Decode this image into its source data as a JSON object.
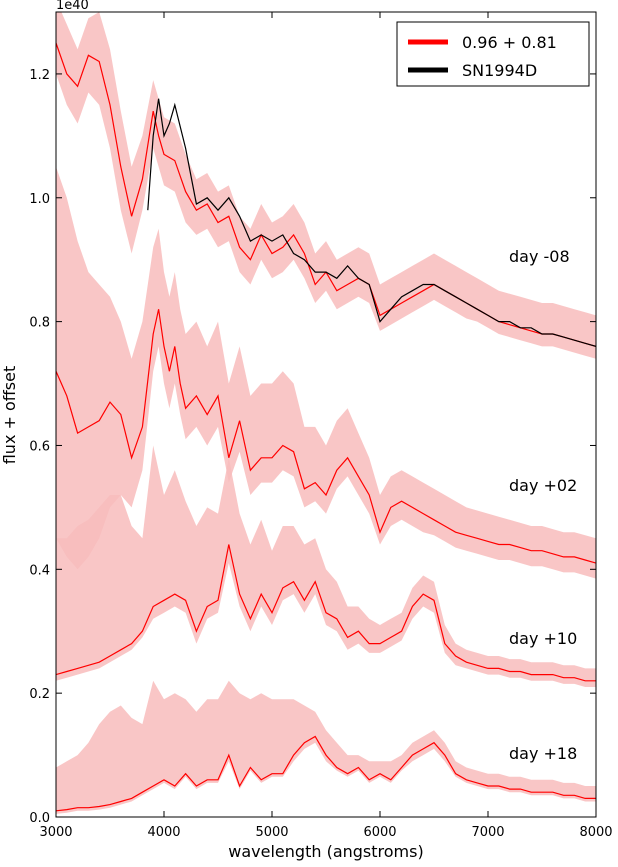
{
  "chart_data": {
    "type": "line",
    "title": "",
    "xlabel": "wavelength (angstroms)",
    "ylabel": "flux + offset",
    "y_exponent_label": "1e40",
    "xlim": [
      3000,
      8000
    ],
    "ylim": [
      0.0,
      1.3
    ],
    "xticks": [
      3000,
      4000,
      5000,
      6000,
      7000,
      8000
    ],
    "xtick_labels": [
      "3000",
      "4000",
      "5000",
      "6000",
      "7000",
      "8000"
    ],
    "yticks": [
      0.0,
      0.2,
      0.4,
      0.6,
      0.8,
      1.0,
      1.2
    ],
    "ytick_labels": [
      "0.0",
      "0.2",
      "0.4",
      "0.6",
      "0.8",
      "1.0",
      "1.2"
    ],
    "grid": false,
    "legend_position": "top-right",
    "legend": [
      {
        "label": "0.96 + 0.81",
        "color": "#ff0000"
      },
      {
        "label": "SN1994D",
        "color": "#000000"
      }
    ],
    "colors": {
      "model": "#ff0000",
      "band": "#f8bcbc",
      "observed": "#000000"
    },
    "epochs": [
      {
        "label": "day -08",
        "model": {
          "x": [
            3000,
            3100,
            3200,
            3300,
            3400,
            3500,
            3600,
            3700,
            3800,
            3900,
            3950,
            4000,
            4100,
            4200,
            4300,
            4400,
            4500,
            4600,
            4700,
            4800,
            4900,
            5000,
            5100,
            5200,
            5300,
            5400,
            5500,
            5600,
            5700,
            5800,
            5900,
            6000,
            6100,
            6200,
            6300,
            6400,
            6500,
            6600,
            6700,
            6800,
            6900,
            7000,
            7100,
            7200,
            7300,
            7400,
            7500,
            7600,
            7700,
            7800,
            7900,
            8000
          ],
          "y": [
            1.25,
            1.2,
            1.18,
            1.23,
            1.22,
            1.15,
            1.05,
            0.97,
            1.03,
            1.14,
            1.1,
            1.07,
            1.06,
            1.01,
            0.98,
            0.99,
            0.96,
            0.97,
            0.92,
            0.9,
            0.94,
            0.91,
            0.92,
            0.94,
            0.91,
            0.86,
            0.88,
            0.85,
            0.86,
            0.87,
            0.86,
            0.81,
            0.82,
            0.83,
            0.84,
            0.85,
            0.86,
            0.85,
            0.84,
            0.83,
            0.82,
            0.81,
            0.8,
            0.795,
            0.79,
            0.785,
            0.78,
            0.78,
            0.775,
            0.77,
            0.765,
            0.76
          ]
        },
        "band_lower": [
          1.2,
          1.15,
          1.12,
          1.17,
          1.15,
          1.08,
          0.98,
          0.91,
          0.98,
          1.08,
          1.05,
          1.02,
          1.01,
          0.96,
          0.94,
          0.95,
          0.92,
          0.93,
          0.88,
          0.86,
          0.9,
          0.87,
          0.88,
          0.9,
          0.87,
          0.83,
          0.85,
          0.82,
          0.83,
          0.84,
          0.83,
          0.785,
          0.795,
          0.805,
          0.815,
          0.825,
          0.835,
          0.825,
          0.815,
          0.805,
          0.8,
          0.79,
          0.78,
          0.775,
          0.77,
          0.765,
          0.76,
          0.76,
          0.755,
          0.75,
          0.745,
          0.74
        ],
        "band_upper": [
          1.32,
          1.28,
          1.24,
          1.29,
          1.3,
          1.24,
          1.14,
          1.05,
          1.1,
          1.19,
          1.16,
          1.13,
          1.12,
          1.07,
          1.03,
          1.04,
          1.01,
          1.02,
          0.97,
          0.95,
          0.99,
          0.96,
          0.97,
          0.99,
          0.96,
          0.91,
          0.93,
          0.9,
          0.91,
          0.92,
          0.91,
          0.86,
          0.87,
          0.88,
          0.89,
          0.9,
          0.91,
          0.9,
          0.89,
          0.88,
          0.87,
          0.86,
          0.85,
          0.845,
          0.84,
          0.835,
          0.83,
          0.83,
          0.825,
          0.82,
          0.815,
          0.81
        ],
        "observed": {
          "x": [
            3850,
            3900,
            3950,
            4000,
            4050,
            4100,
            4200,
            4300,
            4400,
            4500,
            4600,
            4700,
            4800,
            4900,
            5000,
            5100,
            5200,
            5300,
            5400,
            5500,
            5600,
            5700,
            5800,
            5900,
            6000,
            6100,
            6200,
            6300,
            6400,
            6500,
            6600,
            6700,
            6800,
            6900,
            7000,
            7100,
            7200,
            7300,
            7400,
            7500,
            7600,
            7700,
            7800,
            7900,
            8000
          ],
          "y": [
            0.98,
            1.1,
            1.16,
            1.1,
            1.12,
            1.15,
            1.08,
            0.99,
            1.0,
            0.98,
            1.0,
            0.97,
            0.93,
            0.94,
            0.93,
            0.94,
            0.91,
            0.9,
            0.88,
            0.88,
            0.87,
            0.89,
            0.87,
            0.86,
            0.8,
            0.82,
            0.84,
            0.85,
            0.86,
            0.86,
            0.85,
            0.84,
            0.83,
            0.82,
            0.81,
            0.8,
            0.8,
            0.79,
            0.79,
            0.78,
            0.78,
            0.775,
            0.77,
            0.765,
            0.76
          ]
        }
      },
      {
        "label": "day +02",
        "model": {
          "x": [
            3000,
            3100,
            3200,
            3300,
            3400,
            3500,
            3600,
            3700,
            3800,
            3900,
            3950,
            4000,
            4050,
            4100,
            4150,
            4200,
            4300,
            4400,
            4500,
            4600,
            4700,
            4800,
            4900,
            5000,
            5100,
            5200,
            5300,
            5400,
            5500,
            5600,
            5700,
            5800,
            5900,
            6000,
            6100,
            6200,
            6300,
            6400,
            6500,
            6600,
            6700,
            6800,
            6900,
            7000,
            7100,
            7200,
            7300,
            7400,
            7500,
            7600,
            7700,
            7800,
            7900,
            8000
          ],
          "y": [
            0.72,
            0.68,
            0.62,
            0.63,
            0.64,
            0.67,
            0.65,
            0.58,
            0.63,
            0.78,
            0.82,
            0.76,
            0.72,
            0.76,
            0.7,
            0.66,
            0.68,
            0.65,
            0.68,
            0.58,
            0.64,
            0.56,
            0.58,
            0.58,
            0.6,
            0.59,
            0.53,
            0.54,
            0.52,
            0.56,
            0.58,
            0.55,
            0.52,
            0.46,
            0.5,
            0.51,
            0.5,
            0.49,
            0.48,
            0.47,
            0.46,
            0.455,
            0.45,
            0.445,
            0.44,
            0.44,
            0.435,
            0.43,
            0.43,
            0.425,
            0.42,
            0.42,
            0.415,
            0.41
          ]
        },
        "band_lower": [
          0.45,
          0.42,
          0.4,
          0.42,
          0.45,
          0.5,
          0.52,
          0.5,
          0.56,
          0.72,
          0.76,
          0.7,
          0.66,
          0.7,
          0.65,
          0.61,
          0.63,
          0.6,
          0.63,
          0.54,
          0.59,
          0.52,
          0.54,
          0.54,
          0.56,
          0.55,
          0.5,
          0.51,
          0.49,
          0.53,
          0.55,
          0.52,
          0.49,
          0.44,
          0.47,
          0.48,
          0.47,
          0.46,
          0.455,
          0.445,
          0.435,
          0.43,
          0.425,
          0.42,
          0.415,
          0.415,
          0.41,
          0.405,
          0.405,
          0.4,
          0.395,
          0.395,
          0.39,
          0.385
        ],
        "band_upper": [
          1.05,
          1.0,
          0.93,
          0.88,
          0.86,
          0.84,
          0.8,
          0.74,
          0.8,
          0.92,
          0.95,
          0.88,
          0.84,
          0.88,
          0.82,
          0.78,
          0.8,
          0.76,
          0.8,
          0.7,
          0.76,
          0.68,
          0.7,
          0.7,
          0.72,
          0.7,
          0.63,
          0.63,
          0.6,
          0.64,
          0.66,
          0.62,
          0.58,
          0.52,
          0.55,
          0.56,
          0.55,
          0.54,
          0.53,
          0.52,
          0.51,
          0.5,
          0.495,
          0.49,
          0.485,
          0.48,
          0.475,
          0.47,
          0.47,
          0.465,
          0.46,
          0.46,
          0.455,
          0.45
        ]
      },
      {
        "label": "day +10",
        "model": {
          "x": [
            3000,
            3100,
            3200,
            3300,
            3400,
            3500,
            3600,
            3700,
            3800,
            3900,
            4000,
            4100,
            4200,
            4300,
            4400,
            4500,
            4600,
            4700,
            4800,
            4900,
            5000,
            5100,
            5200,
            5300,
            5400,
            5500,
            5600,
            5700,
            5800,
            5900,
            6000,
            6100,
            6200,
            6300,
            6400,
            6500,
            6600,
            6700,
            6800,
            6900,
            7000,
            7100,
            7200,
            7300,
            7400,
            7500,
            7600,
            7700,
            7800,
            7900,
            8000
          ],
          "y": [
            0.23,
            0.235,
            0.24,
            0.245,
            0.25,
            0.26,
            0.27,
            0.28,
            0.3,
            0.34,
            0.35,
            0.36,
            0.35,
            0.3,
            0.34,
            0.35,
            0.44,
            0.36,
            0.32,
            0.36,
            0.33,
            0.37,
            0.38,
            0.35,
            0.38,
            0.33,
            0.32,
            0.29,
            0.3,
            0.28,
            0.28,
            0.29,
            0.3,
            0.34,
            0.36,
            0.35,
            0.28,
            0.26,
            0.25,
            0.245,
            0.24,
            0.24,
            0.235,
            0.235,
            0.23,
            0.23,
            0.23,
            0.225,
            0.225,
            0.22,
            0.22
          ]
        },
        "band_lower": [
          0.22,
          0.225,
          0.23,
          0.235,
          0.24,
          0.25,
          0.26,
          0.27,
          0.29,
          0.32,
          0.33,
          0.34,
          0.33,
          0.28,
          0.32,
          0.33,
          0.41,
          0.34,
          0.3,
          0.34,
          0.31,
          0.35,
          0.36,
          0.33,
          0.36,
          0.31,
          0.3,
          0.27,
          0.28,
          0.265,
          0.265,
          0.275,
          0.285,
          0.32,
          0.34,
          0.33,
          0.265,
          0.245,
          0.24,
          0.235,
          0.23,
          0.23,
          0.225,
          0.225,
          0.22,
          0.22,
          0.22,
          0.215,
          0.215,
          0.21,
          0.21
        ],
        "band_upper": [
          0.45,
          0.45,
          0.47,
          0.48,
          0.5,
          0.52,
          0.52,
          0.47,
          0.45,
          0.6,
          0.52,
          0.56,
          0.51,
          0.47,
          0.5,
          0.49,
          0.58,
          0.49,
          0.44,
          0.48,
          0.43,
          0.47,
          0.47,
          0.44,
          0.45,
          0.4,
          0.38,
          0.34,
          0.34,
          0.32,
          0.31,
          0.32,
          0.33,
          0.37,
          0.39,
          0.38,
          0.31,
          0.28,
          0.27,
          0.265,
          0.26,
          0.26,
          0.255,
          0.255,
          0.25,
          0.25,
          0.25,
          0.245,
          0.245,
          0.24,
          0.24
        ]
      },
      {
        "label": "day +18",
        "model": {
          "x": [
            3000,
            3100,
            3200,
            3300,
            3400,
            3500,
            3600,
            3700,
            3800,
            3900,
            4000,
            4100,
            4200,
            4300,
            4400,
            4500,
            4600,
            4700,
            4800,
            4900,
            5000,
            5100,
            5200,
            5300,
            5400,
            5500,
            5600,
            5700,
            5800,
            5900,
            6000,
            6100,
            6200,
            6300,
            6400,
            6500,
            6600,
            6700,
            6800,
            6900,
            7000,
            7100,
            7200,
            7300,
            7400,
            7500,
            7600,
            7700,
            7800,
            7900,
            8000
          ],
          "y": [
            0.01,
            0.012,
            0.015,
            0.015,
            0.017,
            0.02,
            0.025,
            0.03,
            0.04,
            0.05,
            0.06,
            0.05,
            0.07,
            0.05,
            0.06,
            0.06,
            0.1,
            0.05,
            0.08,
            0.06,
            0.07,
            0.07,
            0.1,
            0.12,
            0.13,
            0.1,
            0.08,
            0.07,
            0.08,
            0.06,
            0.07,
            0.06,
            0.08,
            0.1,
            0.11,
            0.12,
            0.1,
            0.07,
            0.06,
            0.055,
            0.05,
            0.05,
            0.045,
            0.045,
            0.04,
            0.04,
            0.04,
            0.035,
            0.035,
            0.03,
            0.03
          ]
        },
        "band_lower": [
          0.005,
          0.007,
          0.01,
          0.01,
          0.012,
          0.015,
          0.02,
          0.025,
          0.035,
          0.045,
          0.055,
          0.045,
          0.065,
          0.045,
          0.055,
          0.055,
          0.09,
          0.045,
          0.075,
          0.055,
          0.065,
          0.065,
          0.09,
          0.11,
          0.12,
          0.09,
          0.075,
          0.065,
          0.075,
          0.055,
          0.065,
          0.055,
          0.075,
          0.09,
          0.1,
          0.11,
          0.09,
          0.065,
          0.055,
          0.05,
          0.045,
          0.045,
          0.04,
          0.04,
          0.035,
          0.035,
          0.035,
          0.03,
          0.03,
          0.025,
          0.025
        ],
        "band_upper": [
          0.08,
          0.09,
          0.1,
          0.12,
          0.15,
          0.17,
          0.18,
          0.16,
          0.15,
          0.22,
          0.19,
          0.2,
          0.19,
          0.17,
          0.19,
          0.19,
          0.22,
          0.2,
          0.19,
          0.2,
          0.19,
          0.19,
          0.19,
          0.18,
          0.17,
          0.14,
          0.12,
          0.1,
          0.1,
          0.09,
          0.09,
          0.09,
          0.1,
          0.12,
          0.13,
          0.14,
          0.12,
          0.09,
          0.08,
          0.075,
          0.07,
          0.07,
          0.065,
          0.065,
          0.06,
          0.06,
          0.06,
          0.055,
          0.055,
          0.05,
          0.05
        ]
      }
    ]
  }
}
